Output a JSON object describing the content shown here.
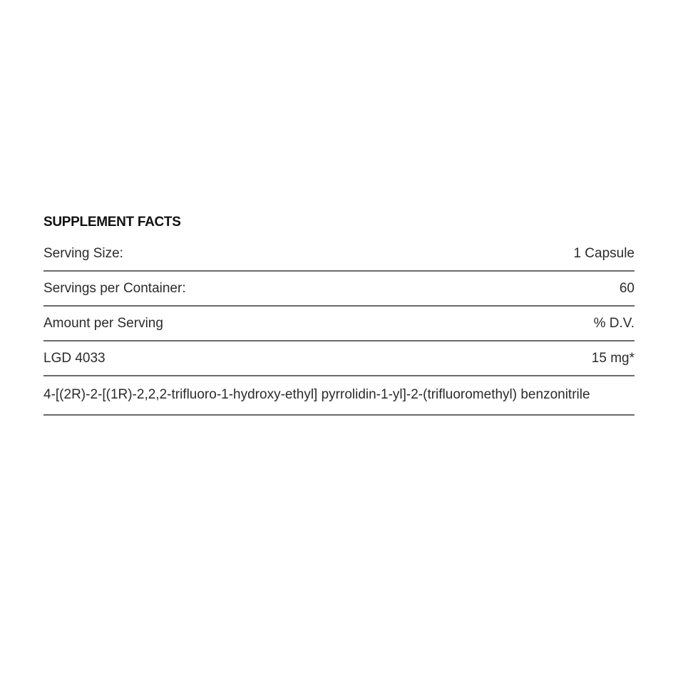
{
  "title": "SUPPLEMENT FACTS",
  "rows": [
    {
      "label": "Serving Size:",
      "value": "1 Capsule"
    },
    {
      "label": "Servings per Container:",
      "value": "60"
    },
    {
      "label": "Amount per Serving",
      "value": "% D.V."
    },
    {
      "label": "LGD 4033",
      "value": "15 mg*"
    }
  ],
  "description": "4-[(2R)-2-[(1R)-2,2,2-trifluoro-1-hydroxy-ethyl] pyrrolidin-1-yl]-2-(trifluoromethyl) benzonitrile"
}
